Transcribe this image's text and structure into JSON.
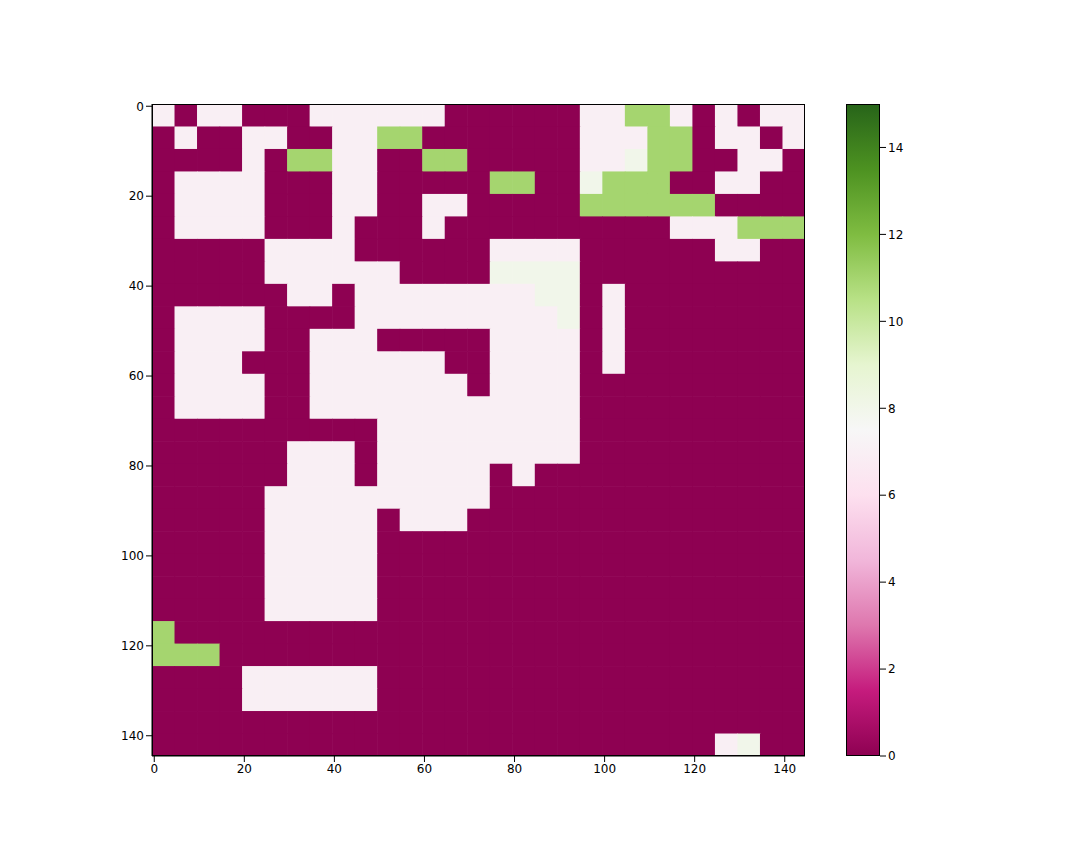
{
  "chart_data": {
    "type": "heatmap",
    "x": [
      2,
      7,
      12,
      17,
      22,
      27,
      32,
      37,
      42,
      47,
      52,
      57,
      62,
      67,
      72,
      77,
      82,
      87,
      92,
      97,
      102,
      107,
      112,
      117,
      122,
      127,
      132,
      137,
      142
    ],
    "y": [
      2,
      7,
      12,
      17,
      22,
      27,
      32,
      37,
      42,
      47,
      52,
      57,
      62,
      67,
      72,
      77,
      82,
      87,
      92,
      97,
      102,
      107,
      112,
      117,
      122,
      127,
      132,
      137,
      142
    ],
    "cells": [
      [
        7,
        0,
        7,
        7,
        0,
        0,
        0,
        7,
        7,
        7,
        7,
        7,
        7,
        0,
        0,
        0,
        0,
        0,
        0,
        7,
        7,
        11,
        11,
        7,
        0,
        7,
        0,
        7,
        7
      ],
      [
        0,
        7,
        0,
        0,
        7,
        7,
        0,
        0,
        7,
        7,
        11,
        11,
        0,
        0,
        0,
        0,
        0,
        0,
        0,
        7,
        7,
        7,
        11,
        11,
        0,
        7,
        7,
        0,
        7
      ],
      [
        0,
        0,
        0,
        0,
        7,
        0,
        11,
        11,
        7,
        7,
        0,
        0,
        11,
        11,
        0,
        0,
        0,
        0,
        0,
        7,
        7,
        8,
        11,
        11,
        0,
        0,
        7,
        7,
        0
      ],
      [
        0,
        7,
        7,
        7,
        7,
        0,
        0,
        0,
        7,
        7,
        0,
        0,
        0,
        0,
        0,
        11,
        11,
        0,
        0,
        8,
        11,
        11,
        11,
        0,
        0,
        7,
        7,
        0,
        0
      ],
      [
        0,
        7,
        7,
        7,
        7,
        0,
        0,
        0,
        7,
        7,
        0,
        0,
        7,
        7,
        0,
        0,
        0,
        0,
        0,
        11,
        11,
        11,
        11,
        11,
        11,
        0,
        0,
        0,
        0
      ],
      [
        0,
        7,
        7,
        7,
        7,
        0,
        0,
        0,
        7,
        0,
        0,
        0,
        7,
        0,
        0,
        0,
        0,
        0,
        0,
        0,
        0,
        0,
        0,
        7,
        7,
        7,
        11,
        11,
        11
      ],
      [
        0,
        0,
        0,
        0,
        0,
        7,
        7,
        7,
        7,
        0,
        0,
        0,
        0,
        0,
        0,
        7,
        7,
        7,
        7,
        0,
        0,
        0,
        0,
        0,
        0,
        7,
        7,
        0,
        0
      ],
      [
        0,
        0,
        0,
        0,
        0,
        7,
        7,
        7,
        7,
        7,
        7,
        0,
        0,
        0,
        0,
        8,
        8,
        8,
        8,
        0,
        0,
        0,
        0,
        0,
        0,
        0,
        0,
        0,
        0
      ],
      [
        0,
        0,
        0,
        0,
        0,
        0,
        7,
        7,
        0,
        7,
        7,
        7,
        7,
        7,
        7,
        7,
        7,
        8,
        8,
        0,
        7,
        0,
        0,
        0,
        0,
        0,
        0,
        0,
        0
      ],
      [
        0,
        7,
        7,
        7,
        7,
        0,
        0,
        0,
        0,
        7,
        7,
        7,
        7,
        7,
        7,
        7,
        7,
        7,
        8,
        0,
        7,
        0,
        0,
        0,
        0,
        0,
        0,
        0,
        0
      ],
      [
        0,
        7,
        7,
        7,
        7,
        0,
        0,
        7,
        7,
        7,
        0,
        0,
        0,
        0,
        0,
        7,
        7,
        7,
        7,
        0,
        7,
        0,
        0,
        0,
        0,
        0,
        0,
        0,
        0
      ],
      [
        0,
        7,
        7,
        7,
        0,
        0,
        0,
        7,
        7,
        7,
        7,
        7,
        7,
        0,
        0,
        7,
        7,
        7,
        7,
        0,
        7,
        0,
        0,
        0,
        0,
        0,
        0,
        0,
        0
      ],
      [
        0,
        7,
        7,
        7,
        7,
        0,
        0,
        7,
        7,
        7,
        7,
        7,
        7,
        7,
        0,
        7,
        7,
        7,
        7,
        0,
        0,
        0,
        0,
        0,
        0,
        0,
        0,
        0,
        0
      ],
      [
        0,
        7,
        7,
        7,
        7,
        0,
        0,
        7,
        7,
        7,
        7,
        7,
        7,
        7,
        7,
        7,
        7,
        7,
        7,
        0,
        0,
        0,
        0,
        0,
        0,
        0,
        0,
        0,
        0
      ],
      [
        0,
        0,
        0,
        0,
        0,
        0,
        0,
        0,
        0,
        0,
        7,
        7,
        7,
        7,
        7,
        7,
        7,
        7,
        7,
        0,
        0,
        0,
        0,
        0,
        0,
        0,
        0,
        0,
        0
      ],
      [
        0,
        0,
        0,
        0,
        0,
        0,
        7,
        7,
        7,
        0,
        7,
        7,
        7,
        7,
        7,
        7,
        7,
        7,
        7,
        0,
        0,
        0,
        0,
        0,
        0,
        0,
        0,
        0,
        0
      ],
      [
        0,
        0,
        0,
        0,
        0,
        0,
        7,
        7,
        7,
        0,
        7,
        7,
        7,
        7,
        7,
        0,
        7,
        0,
        0,
        0,
        0,
        0,
        0,
        0,
        0,
        0,
        0,
        0,
        0
      ],
      [
        0,
        0,
        0,
        0,
        0,
        7,
        7,
        7,
        7,
        7,
        7,
        7,
        7,
        7,
        7,
        0,
        0,
        0,
        0,
        0,
        0,
        0,
        0,
        0,
        0,
        0,
        0,
        0,
        0
      ],
      [
        0,
        0,
        0,
        0,
        0,
        7,
        7,
        7,
        7,
        7,
        0,
        7,
        7,
        7,
        0,
        0,
        0,
        0,
        0,
        0,
        0,
        0,
        0,
        0,
        0,
        0,
        0,
        0,
        0
      ],
      [
        0,
        0,
        0,
        0,
        0,
        7,
        7,
        7,
        7,
        7,
        0,
        0,
        0,
        0,
        0,
        0,
        0,
        0,
        0,
        0,
        0,
        0,
        0,
        0,
        0,
        0,
        0,
        0,
        0
      ],
      [
        0,
        0,
        0,
        0,
        0,
        7,
        7,
        7,
        7,
        7,
        0,
        0,
        0,
        0,
        0,
        0,
        0,
        0,
        0,
        0,
        0,
        0,
        0,
        0,
        0,
        0,
        0,
        0,
        0
      ],
      [
        0,
        0,
        0,
        0,
        0,
        7,
        7,
        7,
        7,
        7,
        0,
        0,
        0,
        0,
        0,
        0,
        0,
        0,
        0,
        0,
        0,
        0,
        0,
        0,
        0,
        0,
        0,
        0,
        0
      ],
      [
        0,
        0,
        0,
        0,
        0,
        7,
        7,
        7,
        7,
        7,
        0,
        0,
        0,
        0,
        0,
        0,
        0,
        0,
        0,
        0,
        0,
        0,
        0,
        0,
        0,
        0,
        0,
        0,
        0
      ],
      [
        11,
        0,
        0,
        0,
        0,
        0,
        0,
        0,
        0,
        0,
        0,
        0,
        0,
        0,
        0,
        0,
        0,
        0,
        0,
        0,
        0,
        0,
        0,
        0,
        0,
        0,
        0,
        0,
        0
      ],
      [
        11,
        11,
        11,
        0,
        0,
        0,
        0,
        0,
        0,
        0,
        0,
        0,
        0,
        0,
        0,
        0,
        0,
        0,
        0,
        0,
        0,
        0,
        0,
        0,
        0,
        0,
        0,
        0,
        0
      ],
      [
        0,
        0,
        0,
        0,
        7,
        7,
        7,
        7,
        7,
        7,
        0,
        0,
        0,
        0,
        0,
        0,
        0,
        0,
        0,
        0,
        0,
        0,
        0,
        0,
        0,
        0,
        0,
        0,
        0
      ],
      [
        0,
        0,
        0,
        0,
        7,
        7,
        7,
        7,
        7,
        7,
        0,
        0,
        0,
        0,
        0,
        0,
        0,
        0,
        0,
        0,
        0,
        0,
        0,
        0,
        0,
        0,
        0,
        0,
        0
      ],
      [
        0,
        0,
        0,
        0,
        0,
        0,
        0,
        0,
        0,
        0,
        0,
        0,
        0,
        0,
        0,
        0,
        0,
        0,
        0,
        0,
        0,
        0,
        0,
        0,
        0,
        0,
        0,
        0,
        0
      ],
      [
        0,
        0,
        0,
        0,
        0,
        0,
        0,
        0,
        0,
        0,
        0,
        0,
        0,
        0,
        0,
        0,
        0,
        0,
        0,
        0,
        0,
        0,
        0,
        0,
        0,
        7,
        8,
        0,
        0
      ]
    ],
    "xlim": [
      -0.5,
      144.5
    ],
    "ylim": [
      144.5,
      -0.5
    ],
    "xticks": [
      0,
      20,
      40,
      60,
      80,
      100,
      120,
      140
    ],
    "yticks": [
      0,
      20,
      40,
      60,
      80,
      100,
      120,
      140
    ],
    "colorbar": {
      "range": [
        0,
        15
      ],
      "ticks": [
        0,
        2,
        4,
        6,
        8,
        10,
        12,
        14
      ]
    }
  }
}
